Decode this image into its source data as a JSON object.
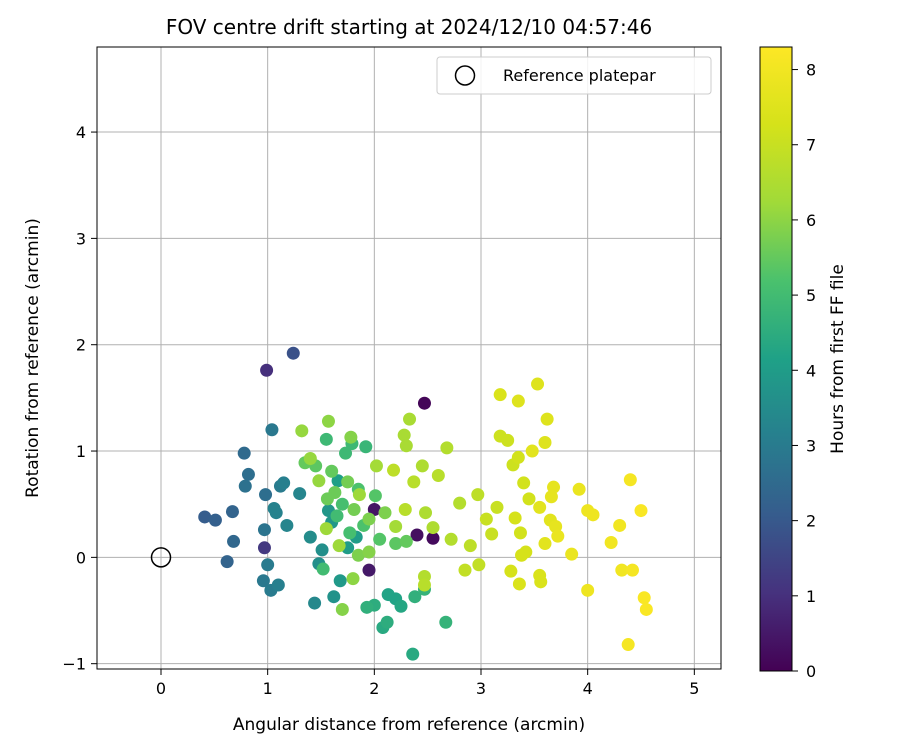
{
  "chart_data": {
    "type": "scatter",
    "title": "FOV centre drift starting at 2024/12/10 04:57:46",
    "xlabel": "Angular distance from reference (arcmin)",
    "ylabel": "Rotation from reference (arcmin)",
    "xlim": [
      -0.6,
      5.25
    ],
    "ylim": [
      -1.05,
      4.8
    ],
    "xticks": [
      0,
      1,
      2,
      3,
      4,
      5
    ],
    "yticks": [
      -1,
      0,
      1,
      2,
      3,
      4
    ],
    "grid": true,
    "legend_position": "top-right",
    "reference": {
      "label": "Reference platepar",
      "x": 0,
      "y": 0
    },
    "colorbar": {
      "label": "Hours from first FF file",
      "range": [
        0,
        8.3
      ],
      "ticks": [
        0,
        1,
        2,
        3,
        4,
        5,
        6,
        7,
        8
      ],
      "colormap": "viridis"
    },
    "points": [
      {
        "x": 2.47,
        "y": 1.45,
        "c": 0.1
      },
      {
        "x": 2.55,
        "y": 0.18,
        "c": 0.2
      },
      {
        "x": 2.4,
        "y": 0.21,
        "c": 0.3
      },
      {
        "x": 2.0,
        "y": 0.45,
        "c": 0.4
      },
      {
        "x": 1.95,
        "y": -0.12,
        "c": 0.5
      },
      {
        "x": 0.99,
        "y": 1.76,
        "c": 1.0
      },
      {
        "x": 0.97,
        "y": 0.09,
        "c": 1.2
      },
      {
        "x": 1.24,
        "y": 1.92,
        "c": 1.8
      },
      {
        "x": 0.41,
        "y": 0.38,
        "c": 2.1
      },
      {
        "x": 0.51,
        "y": 0.35,
        "c": 2.2
      },
      {
        "x": 0.62,
        "y": -0.04,
        "c": 2.3
      },
      {
        "x": 0.68,
        "y": 0.15,
        "c": 2.4
      },
      {
        "x": 0.67,
        "y": 0.43,
        "c": 2.3
      },
      {
        "x": 0.78,
        "y": 0.98,
        "c": 2.5
      },
      {
        "x": 0.82,
        "y": 0.78,
        "c": 2.6
      },
      {
        "x": 0.79,
        "y": 0.67,
        "c": 2.7
      },
      {
        "x": 0.97,
        "y": 0.26,
        "c": 2.8
      },
      {
        "x": 0.98,
        "y": 0.59,
        "c": 2.6
      },
      {
        "x": 1.04,
        "y": 1.2,
        "c": 2.9
      },
      {
        "x": 0.96,
        "y": -0.22,
        "c": 2.9
      },
      {
        "x": 1.0,
        "y": -0.07,
        "c": 3.0
      },
      {
        "x": 1.03,
        "y": -0.31,
        "c": 3.0
      },
      {
        "x": 1.1,
        "y": -0.26,
        "c": 3.1
      },
      {
        "x": 1.12,
        "y": 0.67,
        "c": 3.0
      },
      {
        "x": 1.15,
        "y": 0.7,
        "c": 3.1
      },
      {
        "x": 1.08,
        "y": 0.42,
        "c": 3.2
      },
      {
        "x": 1.06,
        "y": 0.46,
        "c": 3.2
      },
      {
        "x": 1.18,
        "y": 0.3,
        "c": 3.3
      },
      {
        "x": 1.3,
        "y": 0.6,
        "c": 3.3
      },
      {
        "x": 1.44,
        "y": -0.43,
        "c": 3.4
      },
      {
        "x": 1.4,
        "y": 0.19,
        "c": 3.5
      },
      {
        "x": 1.48,
        "y": -0.06,
        "c": 3.6
      },
      {
        "x": 1.51,
        "y": 0.07,
        "c": 3.6
      },
      {
        "x": 1.62,
        "y": -0.37,
        "c": 3.7
      },
      {
        "x": 1.57,
        "y": 0.44,
        "c": 3.8
      },
      {
        "x": 1.6,
        "y": 0.33,
        "c": 3.8
      },
      {
        "x": 1.68,
        "y": -0.22,
        "c": 3.9
      },
      {
        "x": 1.75,
        "y": 0.09,
        "c": 4.0
      },
      {
        "x": 1.83,
        "y": 0.19,
        "c": 4.0
      },
      {
        "x": 1.66,
        "y": 0.72,
        "c": 4.1
      },
      {
        "x": 2.2,
        "y": -0.39,
        "c": 4.2
      },
      {
        "x": 2.13,
        "y": -0.35,
        "c": 4.2
      },
      {
        "x": 2.25,
        "y": -0.46,
        "c": 4.3
      },
      {
        "x": 2.36,
        "y": -0.91,
        "c": 4.4
      },
      {
        "x": 2.08,
        "y": -0.66,
        "c": 4.4
      },
      {
        "x": 2.12,
        "y": -0.61,
        "c": 4.5
      },
      {
        "x": 2.0,
        "y": -0.45,
        "c": 4.5
      },
      {
        "x": 1.93,
        "y": -0.47,
        "c": 4.6
      },
      {
        "x": 2.38,
        "y": -0.37,
        "c": 4.6
      },
      {
        "x": 2.47,
        "y": -0.3,
        "c": 4.7
      },
      {
        "x": 2.67,
        "y": -0.61,
        "c": 4.7
      },
      {
        "x": 1.92,
        "y": 1.04,
        "c": 4.8
      },
      {
        "x": 1.79,
        "y": 1.07,
        "c": 4.9
      },
      {
        "x": 1.55,
        "y": 1.11,
        "c": 4.9
      },
      {
        "x": 1.73,
        "y": 0.98,
        "c": 4.9
      },
      {
        "x": 1.52,
        "y": -0.11,
        "c": 5.0
      },
      {
        "x": 1.65,
        "y": 0.39,
        "c": 5.0
      },
      {
        "x": 1.7,
        "y": 0.5,
        "c": 5.1
      },
      {
        "x": 1.77,
        "y": 0.23,
        "c": 5.1
      },
      {
        "x": 1.85,
        "y": 0.64,
        "c": 5.2
      },
      {
        "x": 1.9,
        "y": 0.3,
        "c": 5.2
      },
      {
        "x": 2.01,
        "y": 0.58,
        "c": 5.3
      },
      {
        "x": 2.05,
        "y": 0.17,
        "c": 5.3
      },
      {
        "x": 2.2,
        "y": 0.13,
        "c": 5.4
      },
      {
        "x": 2.3,
        "y": 0.15,
        "c": 5.5
      },
      {
        "x": 1.45,
        "y": 0.86,
        "c": 5.4
      },
      {
        "x": 1.35,
        "y": 0.89,
        "c": 5.5
      },
      {
        "x": 1.6,
        "y": 0.81,
        "c": 5.5
      },
      {
        "x": 1.56,
        "y": 0.55,
        "c": 5.6
      },
      {
        "x": 1.63,
        "y": 0.61,
        "c": 5.6
      },
      {
        "x": 1.75,
        "y": 0.71,
        "c": 5.7
      },
      {
        "x": 1.81,
        "y": 0.45,
        "c": 5.7
      },
      {
        "x": 1.95,
        "y": 0.36,
        "c": 5.8
      },
      {
        "x": 2.1,
        "y": 0.42,
        "c": 5.8
      },
      {
        "x": 1.85,
        "y": 0.02,
        "c": 5.8
      },
      {
        "x": 1.95,
        "y": 0.05,
        "c": 5.9
      },
      {
        "x": 1.7,
        "y": -0.49,
        "c": 5.9
      },
      {
        "x": 1.8,
        "y": -0.2,
        "c": 6.0
      },
      {
        "x": 1.78,
        "y": 1.13,
        "c": 5.9
      },
      {
        "x": 1.57,
        "y": 1.28,
        "c": 6.0
      },
      {
        "x": 1.32,
        "y": 1.19,
        "c": 6.1
      },
      {
        "x": 1.4,
        "y": 0.93,
        "c": 6.1
      },
      {
        "x": 1.48,
        "y": 0.72,
        "c": 6.1
      },
      {
        "x": 1.55,
        "y": 0.27,
        "c": 6.2
      },
      {
        "x": 1.67,
        "y": 0.11,
        "c": 6.2
      },
      {
        "x": 1.86,
        "y": 0.59,
        "c": 6.2
      },
      {
        "x": 2.02,
        "y": 0.86,
        "c": 6.3
      },
      {
        "x": 2.2,
        "y": 0.29,
        "c": 6.3
      },
      {
        "x": 2.28,
        "y": 1.15,
        "c": 6.4
      },
      {
        "x": 2.33,
        "y": 1.3,
        "c": 6.4
      },
      {
        "x": 2.3,
        "y": 1.05,
        "c": 6.4
      },
      {
        "x": 2.45,
        "y": 0.86,
        "c": 6.5
      },
      {
        "x": 2.48,
        "y": 0.42,
        "c": 6.5
      },
      {
        "x": 2.55,
        "y": 0.28,
        "c": 6.5
      },
      {
        "x": 2.68,
        "y": 1.03,
        "c": 6.6
      },
      {
        "x": 2.72,
        "y": 0.17,
        "c": 6.6
      },
      {
        "x": 2.8,
        "y": 0.51,
        "c": 6.6
      },
      {
        "x": 2.47,
        "y": -0.18,
        "c": 6.6
      },
      {
        "x": 2.47,
        "y": -0.26,
        "c": 6.7
      },
      {
        "x": 2.6,
        "y": 0.77,
        "c": 6.7
      },
      {
        "x": 2.37,
        "y": 0.71,
        "c": 6.7
      },
      {
        "x": 2.29,
        "y": 0.45,
        "c": 6.7
      },
      {
        "x": 2.18,
        "y": 0.82,
        "c": 6.8
      },
      {
        "x": 2.9,
        "y": 0.11,
        "c": 6.8
      },
      {
        "x": 2.97,
        "y": 0.59,
        "c": 6.8
      },
      {
        "x": 2.98,
        "y": -0.07,
        "c": 6.9
      },
      {
        "x": 2.85,
        "y": -0.12,
        "c": 6.9
      },
      {
        "x": 3.05,
        "y": 0.36,
        "c": 7.0
      },
      {
        "x": 3.1,
        "y": 0.22,
        "c": 7.0
      },
      {
        "x": 3.15,
        "y": 0.47,
        "c": 7.0
      },
      {
        "x": 3.18,
        "y": 1.14,
        "c": 7.1
      },
      {
        "x": 3.25,
        "y": 1.1,
        "c": 7.1
      },
      {
        "x": 3.3,
        "y": 0.87,
        "c": 7.1
      },
      {
        "x": 3.35,
        "y": 0.94,
        "c": 7.2
      },
      {
        "x": 3.4,
        "y": 0.7,
        "c": 7.2
      },
      {
        "x": 3.45,
        "y": 0.55,
        "c": 7.2
      },
      {
        "x": 3.37,
        "y": 0.23,
        "c": 7.2
      },
      {
        "x": 3.32,
        "y": 0.37,
        "c": 7.3
      },
      {
        "x": 3.38,
        "y": 0.02,
        "c": 7.3
      },
      {
        "x": 3.42,
        "y": 0.05,
        "c": 7.3
      },
      {
        "x": 3.28,
        "y": -0.13,
        "c": 7.3
      },
      {
        "x": 3.36,
        "y": -0.25,
        "c": 7.4
      },
      {
        "x": 3.55,
        "y": -0.17,
        "c": 7.4
      },
      {
        "x": 3.56,
        "y": -0.23,
        "c": 7.4
      },
      {
        "x": 3.18,
        "y": 1.53,
        "c": 7.4
      },
      {
        "x": 3.53,
        "y": 1.63,
        "c": 7.5
      },
      {
        "x": 3.35,
        "y": 1.47,
        "c": 7.5
      },
      {
        "x": 3.62,
        "y": 1.3,
        "c": 7.5
      },
      {
        "x": 3.6,
        "y": 1.08,
        "c": 7.5
      },
      {
        "x": 3.48,
        "y": 1.0,
        "c": 7.6
      },
      {
        "x": 3.55,
        "y": 0.47,
        "c": 7.6
      },
      {
        "x": 3.65,
        "y": 0.35,
        "c": 7.6
      },
      {
        "x": 3.6,
        "y": 0.13,
        "c": 7.6
      },
      {
        "x": 3.7,
        "y": 0.29,
        "c": 7.7
      },
      {
        "x": 3.66,
        "y": 0.57,
        "c": 7.7
      },
      {
        "x": 3.68,
        "y": 0.66,
        "c": 7.7
      },
      {
        "x": 3.72,
        "y": 0.2,
        "c": 7.8
      },
      {
        "x": 3.85,
        "y": 0.03,
        "c": 7.8
      },
      {
        "x": 3.92,
        "y": 0.64,
        "c": 7.8
      },
      {
        "x": 4.0,
        "y": 0.44,
        "c": 7.9
      },
      {
        "x": 4.05,
        "y": 0.4,
        "c": 7.9
      },
      {
        "x": 4.0,
        "y": -0.31,
        "c": 7.9
      },
      {
        "x": 4.22,
        "y": 0.14,
        "c": 8.0
      },
      {
        "x": 4.3,
        "y": 0.3,
        "c": 8.0
      },
      {
        "x": 4.32,
        "y": -0.12,
        "c": 8.0
      },
      {
        "x": 4.4,
        "y": 0.73,
        "c": 8.1
      },
      {
        "x": 4.42,
        "y": -0.12,
        "c": 8.1
      },
      {
        "x": 4.38,
        "y": -0.82,
        "c": 8.1
      },
      {
        "x": 4.5,
        "y": 0.44,
        "c": 8.2
      },
      {
        "x": 4.53,
        "y": -0.38,
        "c": 8.2
      },
      {
        "x": 4.55,
        "y": -0.49,
        "c": 8.2
      }
    ]
  }
}
